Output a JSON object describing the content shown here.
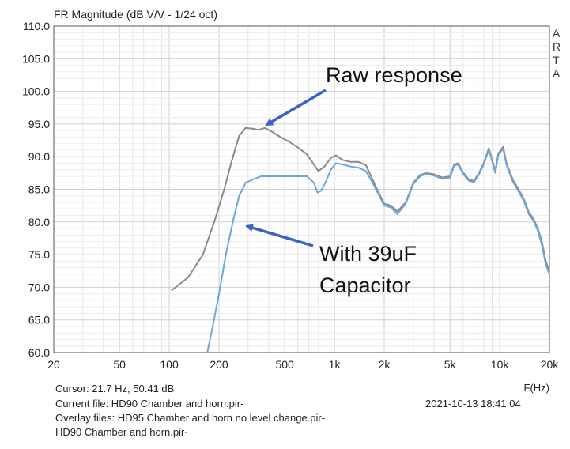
{
  "chart_data": {
    "type": "line",
    "title": "FR Magnitude (dB V/V - 1/24 oct)",
    "xlabel": "F(Hz)",
    "x_scale": "log",
    "xlim": [
      20,
      20000
    ],
    "ylim": [
      60,
      110
    ],
    "grid": true,
    "x_ticks": [
      20,
      50,
      100,
      200,
      500,
      1000,
      2000,
      5000,
      10000,
      20000
    ],
    "x_tick_labels": [
      "20",
      "50",
      "100",
      "200",
      "500",
      "1k",
      "2k",
      "5k",
      "10k",
      "20k"
    ],
    "y_ticks": [
      60,
      65,
      70,
      75,
      80,
      85,
      90,
      95,
      100,
      105,
      110
    ],
    "y_tick_labels": [
      "60.0",
      "65.0",
      "70.0",
      "75.0",
      "80.0",
      "85.0",
      "90.0",
      "95.0",
      "100.0",
      "105.0",
      "110.0"
    ],
    "series": [
      {
        "key": "raw",
        "color": "#8a8a8a",
        "points": [
          [
            103,
            69.5
          ],
          [
            130,
            71.5
          ],
          [
            160,
            75
          ],
          [
            190,
            80.5
          ],
          [
            215,
            85
          ],
          [
            240,
            89.5
          ],
          [
            265,
            93.2
          ],
          [
            290,
            94.4
          ],
          [
            320,
            94.3
          ],
          [
            345,
            94.1
          ],
          [
            380,
            94.4
          ],
          [
            420,
            93.8
          ],
          [
            470,
            93
          ],
          [
            530,
            92.3
          ],
          [
            600,
            91.4
          ],
          [
            680,
            90.4
          ],
          [
            750,
            88.8
          ],
          [
            800,
            87.8
          ],
          [
            870,
            88.5
          ],
          [
            950,
            89.8
          ],
          [
            1020,
            90.2
          ],
          [
            1120,
            89.5
          ],
          [
            1250,
            89.2
          ],
          [
            1400,
            89.2
          ],
          [
            1550,
            88.7
          ],
          [
            1700,
            86.5
          ],
          [
            1850,
            84.5
          ],
          [
            2000,
            82.8
          ],
          [
            2200,
            82.5
          ],
          [
            2400,
            81.6
          ],
          [
            2700,
            83
          ],
          [
            3000,
            86
          ],
          [
            3300,
            87.2
          ],
          [
            3600,
            87.5
          ],
          [
            4000,
            87.3
          ],
          [
            4500,
            86.8
          ],
          [
            5000,
            87
          ],
          [
            5300,
            88.8
          ],
          [
            5600,
            89
          ],
          [
            6000,
            87.6
          ],
          [
            6500,
            86.5
          ],
          [
            7000,
            86.3
          ],
          [
            7500,
            87.5
          ],
          [
            8000,
            89
          ],
          [
            8600,
            91.3
          ],
          [
            9000,
            89.5
          ],
          [
            9400,
            87.8
          ],
          [
            9800,
            90.5
          ],
          [
            10500,
            91.5
          ],
          [
            11000,
            89
          ],
          [
            12000,
            86.5
          ],
          [
            13000,
            85
          ],
          [
            14000,
            83.5
          ],
          [
            15000,
            81.5
          ],
          [
            16000,
            80.5
          ],
          [
            17000,
            79
          ],
          [
            18000,
            77
          ],
          [
            19000,
            74
          ],
          [
            20000,
            72.5
          ]
        ]
      },
      {
        "key": "cap39",
        "color": "#6ea6dc",
        "points": [
          [
            170,
            60
          ],
          [
            185,
            64.5
          ],
          [
            200,
            69
          ],
          [
            220,
            75
          ],
          [
            245,
            80.5
          ],
          [
            265,
            84
          ],
          [
            290,
            86
          ],
          [
            320,
            86.5
          ],
          [
            360,
            87
          ],
          [
            420,
            87
          ],
          [
            500,
            87
          ],
          [
            600,
            87
          ],
          [
            680,
            87
          ],
          [
            750,
            86
          ],
          [
            790,
            84.5
          ],
          [
            830,
            84.8
          ],
          [
            880,
            86
          ],
          [
            950,
            88
          ],
          [
            1020,
            89
          ],
          [
            1120,
            88.8
          ],
          [
            1250,
            88.5
          ],
          [
            1400,
            88.3
          ],
          [
            1550,
            87.8
          ],
          [
            1700,
            86
          ],
          [
            1850,
            84.2
          ],
          [
            2000,
            82.5
          ],
          [
            2200,
            82.2
          ],
          [
            2400,
            81.2
          ],
          [
            2700,
            82.8
          ],
          [
            3000,
            85.8
          ],
          [
            3300,
            87
          ],
          [
            3600,
            87.4
          ],
          [
            4000,
            87.1
          ],
          [
            4500,
            86.6
          ],
          [
            5000,
            86.8
          ],
          [
            5300,
            88.6
          ],
          [
            5600,
            88.8
          ],
          [
            6000,
            87.4
          ],
          [
            6500,
            86.3
          ],
          [
            7000,
            86.1
          ],
          [
            7500,
            87.3
          ],
          [
            8000,
            88.8
          ],
          [
            8600,
            91.1
          ],
          [
            9000,
            89.3
          ],
          [
            9400,
            87.5
          ],
          [
            9800,
            90.3
          ],
          [
            10500,
            91.2
          ],
          [
            11000,
            88.7
          ],
          [
            12000,
            86.2
          ],
          [
            13000,
            84.7
          ],
          [
            14000,
            83.2
          ],
          [
            15000,
            81.2
          ],
          [
            16000,
            80.2
          ],
          [
            17000,
            78.7
          ],
          [
            18000,
            76.5
          ],
          [
            19000,
            73.5
          ],
          [
            20000,
            72
          ]
        ]
      }
    ],
    "annotations": [
      {
        "key": "raw",
        "text": "Raw response",
        "arrow_to": [
          370,
          94.5
        ]
      },
      {
        "key": "cap",
        "text_lines": [
          "With 39uF",
          "Capacitor"
        ],
        "arrow_to": [
          275,
          79.5
        ]
      }
    ]
  },
  "info": {
    "cursor": "Cursor: 21.7 Hz, 50.41 dB",
    "current_file": "Current file: HD90 Chamber and horn.pir-",
    "overlay_files": "Overlay files: HD95 Chamber and horn no level change.pir-",
    "overlay_file2": "HD90 Chamber and horn.pir",
    "overlay_file2_suffix": "-",
    "timestamp": "2021-10-13  18:41:04",
    "logo_letters": [
      "A",
      "R",
      "T",
      "A"
    ]
  }
}
